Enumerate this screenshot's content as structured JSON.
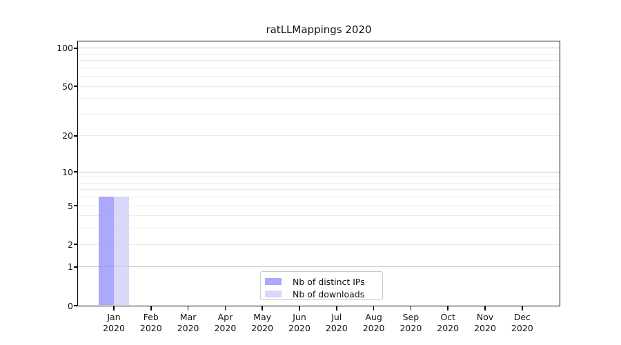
{
  "chart_data": {
    "type": "bar",
    "title": "ratLLMappings 2020",
    "categories": [
      "Jan",
      "Feb",
      "Mar",
      "Apr",
      "May",
      "Jun",
      "Jul",
      "Aug",
      "Sep",
      "Oct",
      "Nov",
      "Dec"
    ],
    "category_sublabel": "2020",
    "series": [
      {
        "name": "Nb of distinct IPs",
        "values": [
          6,
          0,
          0,
          0,
          0,
          0,
          0,
          0,
          0,
          0,
          0,
          0
        ],
        "fill": "rgba(149,149,246,0.8)",
        "legend_color": "#aaaaf8"
      },
      {
        "name": "Nb of downloads",
        "values": [
          6,
          0,
          0,
          0,
          0,
          0,
          0,
          0,
          0,
          0,
          0,
          0
        ],
        "fill": "rgba(206,206,246,0.8)",
        "legend_color": "#d8d8f8"
      }
    ],
    "xlabel": "",
    "ylabel": "",
    "yscale": "log1p",
    "ylim": [
      0,
      113
    ],
    "y_ticks": [
      0,
      1,
      2,
      5,
      10,
      20,
      50,
      100
    ],
    "y_gridlines_major": [
      1,
      10,
      100
    ],
    "y_gridlines_minor": [
      2,
      3,
      4,
      5,
      6,
      7,
      8,
      9,
      20,
      30,
      40,
      50,
      60,
      70,
      80,
      90
    ],
    "grid_major_color": "#c9c9c9",
    "grid_minor_color": "#ebebeb",
    "axis_color": "#000000",
    "legend_position": "lower center"
  }
}
